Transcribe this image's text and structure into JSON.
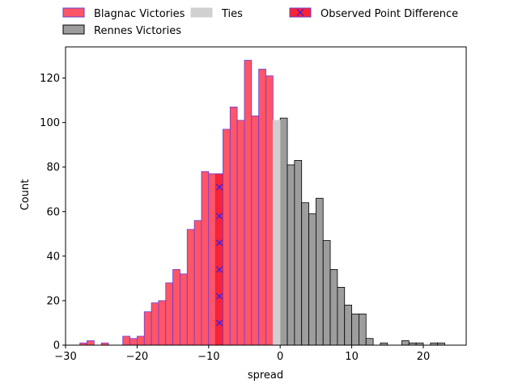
{
  "chart_data": {
    "type": "bar",
    "title": "",
    "xlabel": "spread",
    "ylabel": "Count",
    "xlim": [
      -30,
      26
    ],
    "ylim": [
      0,
      134
    ],
    "xticks": [
      -30,
      -20,
      -10,
      0,
      10,
      20
    ],
    "yticks": [
      0,
      20,
      40,
      60,
      80,
      100,
      120
    ],
    "bin_width": 1,
    "legend_position": "top-center, above plot",
    "series": [
      {
        "name": "Blagnac Victories",
        "color": "#ff5567",
        "edgecolor": "#6a3bd8",
        "bins": [
          {
            "x": -28,
            "count": 1
          },
          {
            "x": -27,
            "count": 2
          },
          {
            "x": -25,
            "count": 1
          },
          {
            "x": -22,
            "count": 4
          },
          {
            "x": -21,
            "count": 3
          },
          {
            "x": -20,
            "count": 4
          },
          {
            "x": -19,
            "count": 15
          },
          {
            "x": -18,
            "count": 19
          },
          {
            "x": -17,
            "count": 20
          },
          {
            "x": -16,
            "count": 28
          },
          {
            "x": -15,
            "count": 34
          },
          {
            "x": -14,
            "count": 32
          },
          {
            "x": -13,
            "count": 52
          },
          {
            "x": -12,
            "count": 56
          },
          {
            "x": -11,
            "count": 78
          },
          {
            "x": -10,
            "count": 77
          },
          {
            "x": -9,
            "count": 77
          },
          {
            "x": -8,
            "count": 97
          },
          {
            "x": -7,
            "count": 107
          },
          {
            "x": -6,
            "count": 101
          },
          {
            "x": -5,
            "count": 128
          },
          {
            "x": -4,
            "count": 103
          },
          {
            "x": -3,
            "count": 124
          },
          {
            "x": -2,
            "count": 121
          }
        ]
      },
      {
        "name": "Rennes Victories",
        "color": "#9d9d9d",
        "edgecolor": "#000000",
        "bins": [
          {
            "x": 0,
            "count": 102
          },
          {
            "x": 1,
            "count": 81
          },
          {
            "x": 2,
            "count": 83
          },
          {
            "x": 3,
            "count": 64
          },
          {
            "x": 4,
            "count": 59
          },
          {
            "x": 5,
            "count": 66
          },
          {
            "x": 6,
            "count": 47
          },
          {
            "x": 7,
            "count": 34
          },
          {
            "x": 8,
            "count": 26
          },
          {
            "x": 9,
            "count": 18
          },
          {
            "x": 10,
            "count": 14
          },
          {
            "x": 11,
            "count": 14
          },
          {
            "x": 12,
            "count": 3
          },
          {
            "x": 14,
            "count": 1
          },
          {
            "x": 17,
            "count": 2
          },
          {
            "x": 18,
            "count": 1
          },
          {
            "x": 19,
            "count": 1
          },
          {
            "x": 21,
            "count": 1
          },
          {
            "x": 22,
            "count": 1
          }
        ]
      },
      {
        "name": "Ties",
        "color": "#d0d0d0",
        "edgecolor": "#d0d0d0",
        "bins": [
          {
            "x": -1,
            "count": 101
          }
        ]
      }
    ],
    "observed": {
      "name": "Observed Point Difference",
      "x": -9,
      "color": "#ff2233",
      "marker_color": "#2222ff",
      "marker_counts": [
        10,
        22,
        34,
        46,
        58,
        71
      ]
    }
  }
}
